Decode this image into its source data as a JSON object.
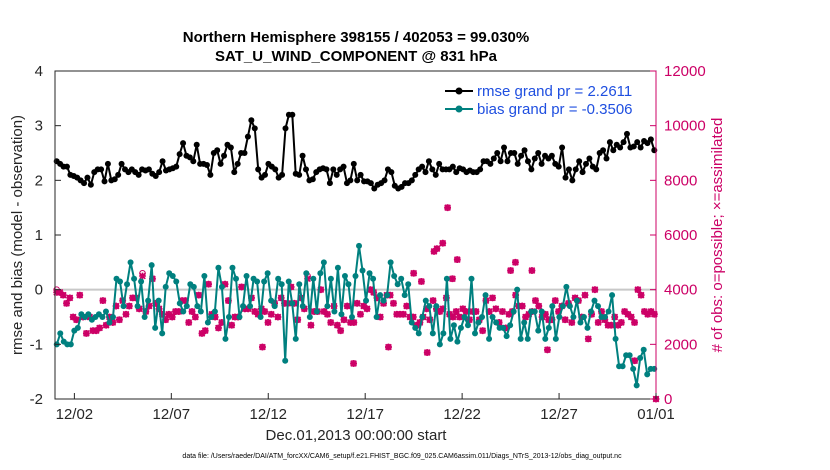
{
  "chart_data": {
    "type": "line",
    "title_line1": "Northern Hemisphere 398155 / 402053 = 99.030%",
    "title_line2": "SAT_U_WIND_COMPONENT @ 831 hPa",
    "xlabel": "Dec.01,2013 00:00:00 start",
    "ylabel_left": "rmse and bias (model - observation)",
    "ylabel_right": "# of obs: o=possible; ×=assimilated",
    "xlim": [
      0,
      31
    ],
    "ylim_left": [
      -2,
      4
    ],
    "ylim_right": [
      0,
      12000
    ],
    "x_ticks": [
      {
        "value": 1,
        "label": "12/02"
      },
      {
        "value": 6,
        "label": "12/07"
      },
      {
        "value": 11,
        "label": "12/12"
      },
      {
        "value": 16,
        "label": "12/17"
      },
      {
        "value": 21,
        "label": "12/22"
      },
      {
        "value": 26,
        "label": "12/27"
      },
      {
        "value": 31,
        "label": "01/01"
      }
    ],
    "y_ticks_left": [
      -2,
      -1,
      0,
      1,
      2,
      3,
      4
    ],
    "y_ticks_right": [
      0,
      2000,
      4000,
      6000,
      8000,
      10000,
      12000
    ],
    "zero_line": 0,
    "colors": {
      "rmse": "#000000",
      "bias": "#00807f",
      "obs": "#cc0066",
      "zero_line": "#c8c8c8",
      "legend_text": "#1f4fe0"
    },
    "series": [
      {
        "name": "rmse",
        "legend": "rmse grand pr = 2.2611",
        "axis": "left",
        "values": [
          2.35,
          2.3,
          2.25,
          2.25,
          2.1,
          2.08,
          2.05,
          2.0,
          1.95,
          2.05,
          1.92,
          2.15,
          2.2,
          2.2,
          1.98,
          2.3,
          2.0,
          2.02,
          2.1,
          2.3,
          2.2,
          2.15,
          2.2,
          2.15,
          2.1,
          2.2,
          2.18,
          2.2,
          2.12,
          2.08,
          2.15,
          2.35,
          2.18,
          2.2,
          2.22,
          2.25,
          2.48,
          2.68,
          2.45,
          2.42,
          2.35,
          2.65,
          2.3,
          2.3,
          2.28,
          2.1,
          2.5,
          2.55,
          2.3,
          2.45,
          2.65,
          2.6,
          2.15,
          2.3,
          2.5,
          2.5,
          2.8,
          3.1,
          2.95,
          2.2,
          2.05,
          2.1,
          2.3,
          2.25,
          2.2,
          2.05,
          2.1,
          2.95,
          3.2,
          3.2,
          2.12,
          2.1,
          2.45,
          2.2,
          2.0,
          2.02,
          2.15,
          2.2,
          2.22,
          2.2,
          1.95,
          2.2,
          2.1,
          2.2,
          2.25,
          1.95,
          2.0,
          2.3,
          2.0,
          2.1,
          1.98,
          1.98,
          1.95,
          1.85,
          1.92,
          1.95,
          2.0,
          2.2,
          2.15,
          1.9,
          1.85,
          1.88,
          1.95,
          1.95,
          2.0,
          2.1,
          2.2,
          2.25,
          2.15,
          2.35,
          2.2,
          2.1,
          2.3,
          2.2,
          2.2,
          2.2,
          2.25,
          2.15,
          2.22,
          2.2,
          2.15,
          2.18,
          2.15,
          2.15,
          2.2,
          2.35,
          2.35,
          2.3,
          2.4,
          2.5,
          2.35,
          2.6,
          2.35,
          2.5,
          2.5,
          2.3,
          2.45,
          2.55,
          2.35,
          2.2,
          2.4,
          2.5,
          2.3,
          2.45,
          2.4,
          2.45,
          2.3,
          2.25,
          2.6,
          2.05,
          2.2,
          2.0,
          2.2,
          2.35,
          2.15,
          2.3,
          2.4,
          2.25,
          2.2,
          2.5,
          2.55,
          2.4,
          2.7,
          2.55,
          2.65,
          2.6,
          2.7,
          2.85,
          2.6,
          2.62,
          2.7,
          2.6,
          2.72,
          2.68,
          2.75,
          2.55
        ]
      },
      {
        "name": "bias",
        "legend": "bias grand pr = -0.3506",
        "axis": "left",
        "values": [
          -1.0,
          -0.8,
          -0.95,
          -1.0,
          -1.0,
          -0.75,
          -0.7,
          -0.45,
          -0.5,
          -0.45,
          -0.55,
          -0.5,
          -0.45,
          -0.5,
          -0.4,
          -0.6,
          -0.5,
          0.2,
          0.15,
          -0.3,
          0.1,
          0.5,
          0.2,
          -0.3,
          0.15,
          -0.5,
          -0.2,
          0.45,
          -0.7,
          -0.2,
          -0.8,
          0.05,
          0.3,
          0.25,
          0.15,
          -0.25,
          -0.4,
          -0.3,
          0.1,
          0.05,
          -0.3,
          -0.4,
          0.25,
          -0.6,
          -0.5,
          -0.4,
          0.4,
          0.05,
          -0.9,
          -0.5,
          0.4,
          0.2,
          -0.5,
          -0.3,
          0.25,
          -0.3,
          0.2,
          0.15,
          -0.5,
          0.15,
          0.3,
          -0.2,
          -0.3,
          0.2,
          0.1,
          -1.3,
          0.15,
          -0.25,
          -0.9,
          0.1,
          -0.3,
          0.3,
          -0.5,
          0.2,
          -0.4,
          0.3,
          0.5,
          -0.3,
          0.2,
          -0.4,
          0.4,
          -0.45,
          0.25,
          0.1,
          -0.5,
          0.25,
          0.8,
          0.35,
          -0.2,
          0.3,
          0.2,
          -0.5,
          -0.1,
          -0.2,
          -0.1,
          0.5,
          0.25,
          0.1,
          0.2,
          -0.1,
          0.1,
          -0.6,
          -0.7,
          -0.8,
          -0.5,
          -0.2,
          -0.3,
          -0.8,
          -0.3,
          -1.0,
          -0.8,
          0.2,
          -0.9,
          -0.65,
          -0.95,
          -0.7,
          -0.5,
          -0.65,
          0.2,
          -0.8,
          -0.6,
          -0.5,
          -0.1,
          -0.9,
          -0.5,
          -0.6,
          -0.7,
          -0.7,
          -0.85,
          -0.65,
          -0.4,
          0.0,
          -0.9,
          -0.6,
          -0.9,
          -0.4,
          -0.4,
          -0.75,
          -0.4,
          -0.9,
          -0.7,
          -0.3,
          -0.9,
          -0.5,
          -0.3,
          0.05,
          -0.3,
          -0.5,
          -0.2,
          -0.6,
          -0.5,
          -0.7,
          -0.4,
          -0.2,
          -0.3,
          -0.5,
          -0.5,
          -0.4,
          -0.1,
          -0.9,
          -1.4,
          -1.4,
          -1.2,
          -1.2,
          -1.45,
          -1.75,
          -1.25,
          -1.1,
          -1.55,
          -1.45,
          -1.45
        ]
      },
      {
        "name": "obs_assimilated",
        "legend": "",
        "axis": "right",
        "values": [
          3900,
          3900,
          3800,
          3500,
          3700,
          3000,
          2900,
          3800,
          3000,
          2400,
          3000,
          2500,
          2500,
          2600,
          3600,
          2700,
          3000,
          2800,
          3400,
          2900,
          3600,
          3100,
          3400,
          3700,
          3700,
          3300,
          4500,
          3200,
          3400,
          4400,
          3500,
          3300,
          3100,
          2900,
          3100,
          3000,
          3200,
          3200,
          3600,
          3600,
          2800,
          3200,
          3000,
          3800,
          2400,
          2500,
          4200,
          3100,
          3000,
          2600,
          2800,
          4200,
          3600,
          2700,
          3000,
          3000,
          4100,
          3300,
          3300,
          3700,
          3200,
          3100,
          3300,
          3200,
          2800,
          3100,
          3500,
          3000,
          3700,
          3500,
          3500,
          4100,
          3500,
          2900,
          3700,
          3300,
          4400,
          2700,
          3200,
          3200,
          4000,
          3200,
          3100,
          2800,
          3400,
          2700,
          2500,
          2900,
          3400,
          2800,
          2800,
          3500,
          3100,
          3400,
          3300,
          4000,
          3900,
          3700,
          3000,
          3500,
          3800,
          3800,
          3500,
          3100,
          3100,
          3100,
          3400,
          3000,
          3000,
          2700,
          2800,
          3000,
          3300,
          2900,
          3600,
          3300,
          3200,
          3300,
          3700,
          3100,
          3000,
          3200,
          3000,
          3300,
          3200,
          2900,
          3200,
          3200,
          2900,
          2500,
          3600,
          3200,
          3700,
          3300,
          2800,
          3200,
          2600,
          3100,
          3200,
          3800,
          3400,
          3400,
          3000,
          3100,
          3200,
          3600,
          3400,
          3000,
          3100,
          2900,
          2900,
          3600,
          3200,
          3400,
          2900,
          3500,
          2800,
          3700,
          3600,
          3000,
          3800,
          2200,
          3100,
          4000,
          2800,
          3200,
          2900,
          2700,
          2700,
          3000,
          2700,
          2800,
          3200,
          3100,
          3000,
          2800,
          4000,
          3800,
          3200,
          3100,
          3200,
          3100
        ]
      },
      {
        "name": "obs_possible",
        "legend": "",
        "axis": "right",
        "values": [
          4000,
          3900,
          3800,
          3500,
          3700,
          3000,
          2900,
          3800,
          3000,
          2400,
          3000,
          2500,
          2500,
          2600,
          3600,
          2700,
          3000,
          2800,
          3400,
          2900,
          3600,
          3100,
          3400,
          3700,
          3700,
          3300,
          4600,
          3200,
          3400,
          4400,
          3500,
          3300,
          3100,
          2900,
          3100,
          3000,
          3200,
          3200,
          3600,
          3600,
          2800,
          3200,
          3000,
          3800,
          2400,
          2500,
          4200,
          3100,
          3000,
          2600,
          2800,
          4200,
          3600,
          2700,
          3000,
          3000,
          4100,
          3300,
          3300,
          3700,
          3200,
          3100,
          3300,
          3200,
          2800,
          3100,
          3500,
          3000,
          3700,
          3500,
          3500,
          4100,
          3500,
          2900,
          3700,
          3300,
          4500,
          2700,
          3200,
          3200,
          4000,
          3200,
          3100,
          2800,
          3400,
          2700,
          2500,
          2900,
          3400,
          2800,
          2800,
          3500,
          3100,
          3400,
          3300,
          4000,
          3900,
          3700,
          3000,
          3500,
          3800,
          3800,
          3500,
          3100,
          3100,
          3100,
          3400,
          3000,
          3000,
          2700,
          2800,
          3000,
          3300,
          2900,
          3600,
          3300,
          3200,
          3300,
          3700,
          3100,
          3000,
          3200,
          3000,
          3300,
          3200,
          2900,
          3200,
          3200,
          2900,
          2500,
          3600,
          3200,
          3700,
          3300,
          2800,
          3200,
          2600,
          3100,
          3200,
          3800,
          3400,
          3400,
          3000,
          3100,
          3200,
          3600,
          3400,
          3000,
          3100,
          2900,
          2900,
          3600,
          3200,
          3400,
          2900,
          3500,
          2800,
          3700,
          3600,
          3000,
          3800,
          2200,
          3100,
          4000,
          2800,
          3200,
          2900,
          2700,
          2700,
          3000,
          2700,
          2800,
          3200,
          3100,
          3000,
          2800,
          4000,
          3800,
          3200,
          3100,
          3200,
          3100
        ]
      }
    ],
    "outlier_obs": [
      {
        "x": 19.55,
        "value": 5400
      },
      {
        "x": 19.7,
        "value": 5500
      },
      {
        "x": 20.0,
        "value": 5700
      },
      {
        "x": 20.25,
        "value": 7000
      },
      {
        "x": 20.75,
        "value": 5100
      },
      {
        "x": 18.9,
        "value": 4300
      },
      {
        "x": 23.75,
        "value": 5000
      },
      {
        "x": 18.5,
        "value": 4600
      },
      {
        "x": 20.5,
        "value": 4400
      },
      {
        "x": 23.5,
        "value": 4700
      },
      {
        "x": 24.6,
        "value": 4700
      },
      {
        "x": 10.7,
        "value": 1900
      },
      {
        "x": 15.4,
        "value": 1300
      },
      {
        "x": 17.2,
        "value": 1900
      },
      {
        "x": 19.2,
        "value": 1700
      },
      {
        "x": 25.4,
        "value": 1800
      },
      {
        "x": 29.9,
        "value": 1400
      },
      {
        "x": 31.0,
        "value": 0
      }
    ],
    "footnote": "data file: /Users/raeder/DAI/ATM_forcXX/CAM6_setup/f.e21.FHIST_BGC.f09_025.CAM6assim.011/Diags_NTrS_2013-12/obs_diag_output.nc"
  }
}
